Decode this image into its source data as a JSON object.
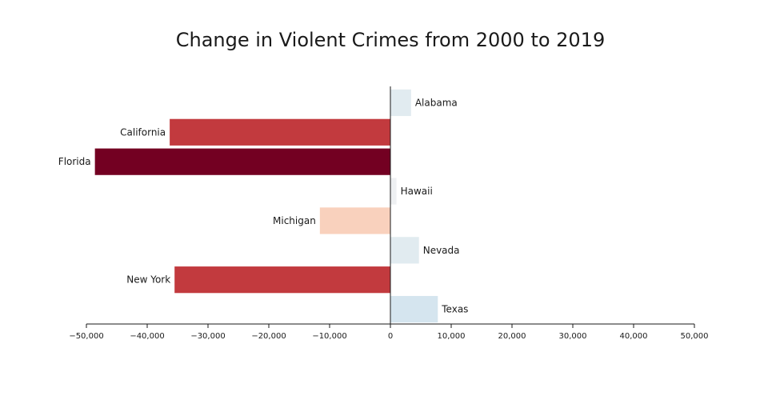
{
  "chart_data": {
    "type": "bar",
    "orientation": "horizontal",
    "title": "Change in Violent Crimes from 2000 to 2019",
    "xlabel": "",
    "ylabel": "",
    "xlim": [
      -50000,
      50000
    ],
    "x_ticks": [
      -50000,
      -40000,
      -30000,
      -20000,
      -10000,
      0,
      10000,
      20000,
      30000,
      40000,
      50000
    ],
    "x_tick_labels": [
      "−50,000",
      "−40,000",
      "−30,000",
      "−20,000",
      "−10,000",
      "0",
      "10,000",
      "20,000",
      "30,000",
      "40,000",
      "50,000"
    ],
    "categories": [
      "Alabama",
      "California",
      "Florida",
      "Hawaii",
      "Michigan",
      "Nevada",
      "New York",
      "Texas"
    ],
    "values": [
      3400,
      -36300,
      -48600,
      1000,
      -11600,
      4700,
      -35500,
      7800
    ],
    "bar_colors": [
      "#e1ebf0",
      "#c23a3e",
      "#730022",
      "#eef0f2",
      "#f9d1bd",
      "#e1ebf0",
      "#c23a3e",
      "#d5e5ef"
    ],
    "grid": false,
    "legend": "none"
  }
}
